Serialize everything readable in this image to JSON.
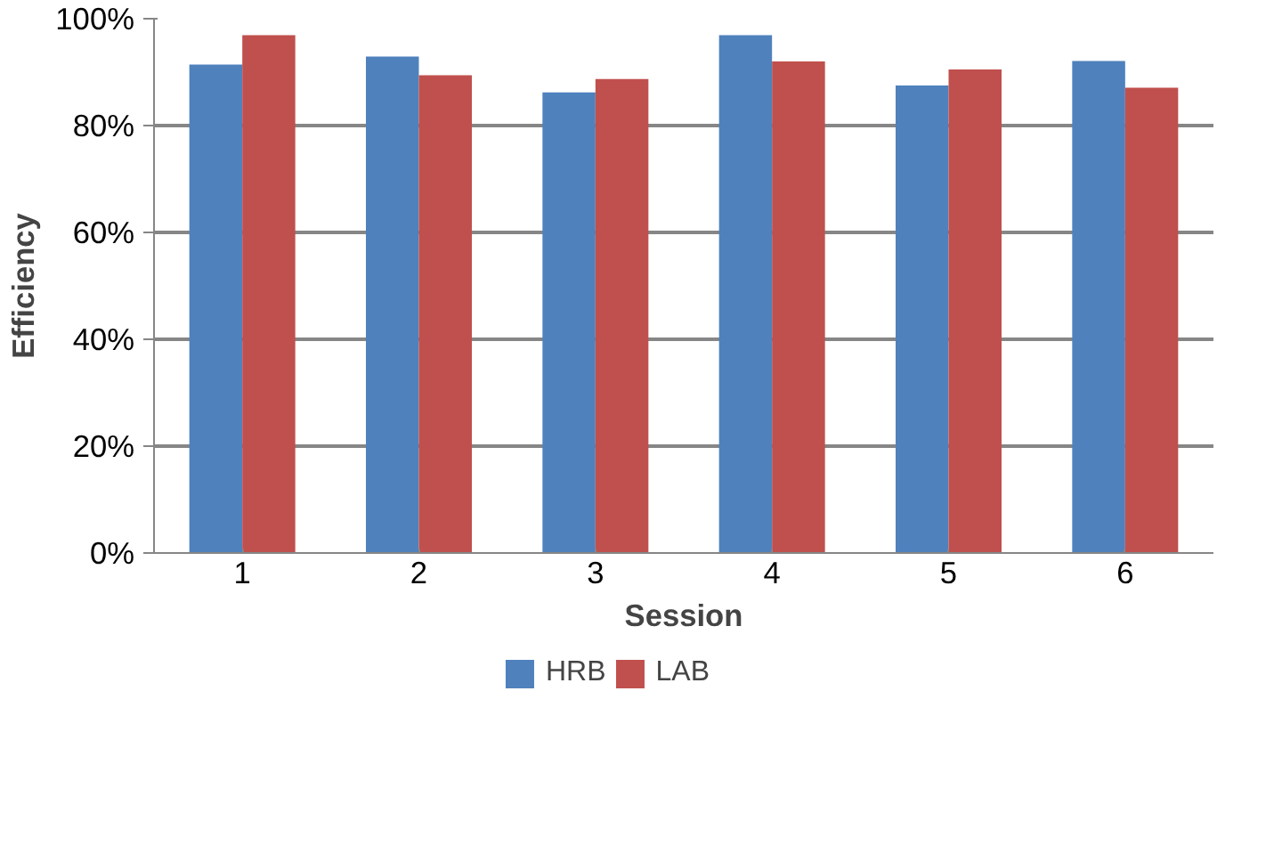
{
  "chart_data": {
    "type": "bar",
    "xlabel": "Session",
    "ylabel": "Efficiency",
    "categories": [
      "1",
      "2",
      "3",
      "4",
      "5",
      "6"
    ],
    "series": [
      {
        "name": "HRB",
        "color": "#4f81bd",
        "values": [
          91.4,
          92.9,
          86.2,
          96.9,
          87.5,
          92.1
        ]
      },
      {
        "name": "LAB",
        "color": "#c0504d",
        "values": [
          96.9,
          89.4,
          88.7,
          92.0,
          90.5,
          87.1
        ]
      }
    ],
    "ylim": [
      0,
      100
    ],
    "yticks": [
      {
        "value": 0,
        "label": "0%"
      },
      {
        "value": 20,
        "label": "20%"
      },
      {
        "value": 40,
        "label": "40%"
      },
      {
        "value": 60,
        "label": "60%"
      },
      {
        "value": 80,
        "label": "80%"
      },
      {
        "value": 100,
        "label": "100%"
      }
    ],
    "grid": "y",
    "legend": "bottom"
  }
}
